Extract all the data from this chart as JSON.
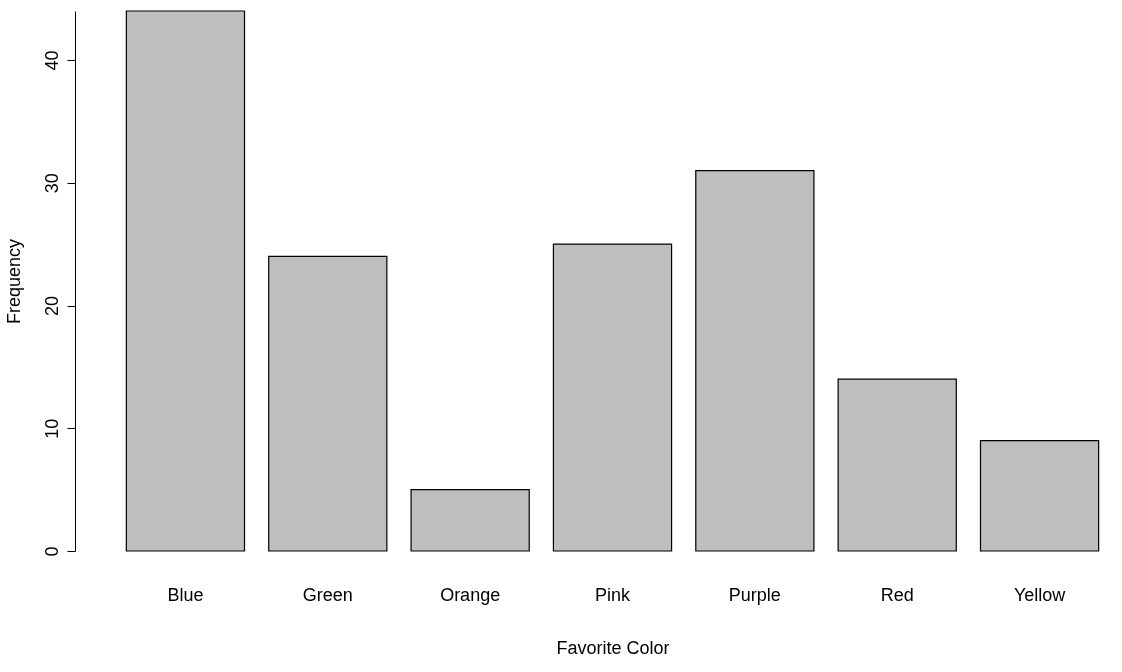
{
  "chart_data": {
    "type": "bar",
    "xlabel": "Favorite Color",
    "ylabel": "Frequency",
    "categories": [
      "Blue",
      "Green",
      "Orange",
      "Pink",
      "Purple",
      "Red",
      "Yellow"
    ],
    "values": [
      44,
      24,
      5,
      25,
      31,
      14,
      9
    ],
    "color": "#bebebe",
    "ylim": [
      0,
      44
    ],
    "yticks": [
      0,
      10,
      20,
      30,
      40
    ],
    "grid": false
  }
}
